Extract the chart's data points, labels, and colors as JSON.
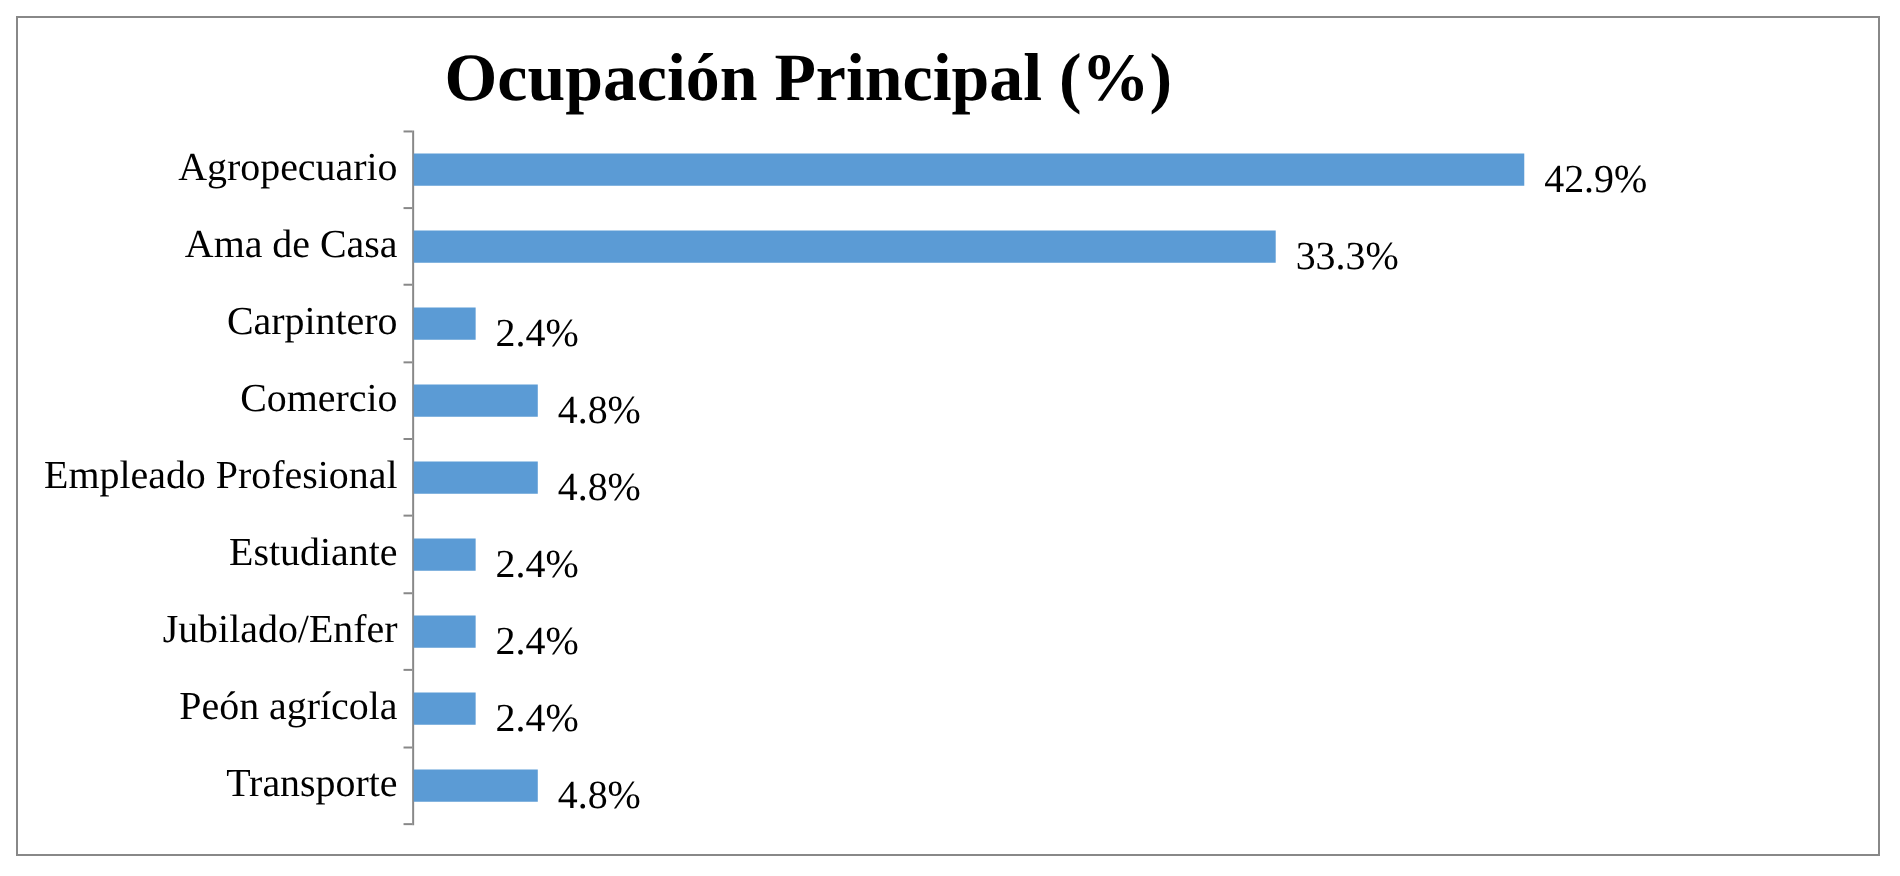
{
  "chart_data": {
    "type": "bar",
    "orientation": "horizontal",
    "title": "Ocupación Principal (%)",
    "categories": [
      "Agropecuario",
      "Ama de Casa",
      "Carpintero",
      "Comercio",
      "Empleado Profesional",
      "Estudiante",
      "Jubilado/Enfer",
      "Peón agrícola",
      "Transporte"
    ],
    "values": [
      42.9,
      33.3,
      2.4,
      4.8,
      4.8,
      2.4,
      2.4,
      2.4,
      4.8
    ],
    "value_labels": [
      "42.9%",
      "33.3%",
      "2.4%",
      "4.8%",
      "4.8%",
      "2.4%",
      "2.4%",
      "2.4%",
      "4.8%"
    ],
    "color": "#5b9bd5"
  }
}
